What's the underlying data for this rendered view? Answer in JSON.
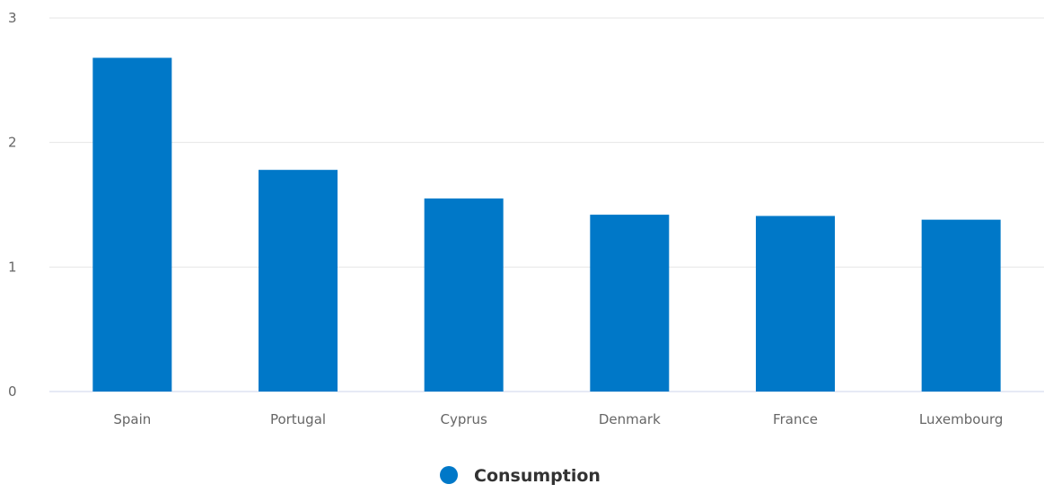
{
  "chart_data": {
    "type": "bar",
    "categories": [
      "Spain",
      "Portugal",
      "Cyprus",
      "Denmark",
      "France",
      "Luxembourg"
    ],
    "series": [
      {
        "name": "Consumption",
        "color": "#0078c8",
        "values": [
          2.68,
          1.78,
          1.55,
          1.42,
          1.41,
          1.38
        ]
      }
    ],
    "ylim": [
      0,
      3
    ],
    "yticks": [
      "0",
      "1",
      "2",
      "3"
    ],
    "grid": true,
    "legend": "bottom-center"
  }
}
